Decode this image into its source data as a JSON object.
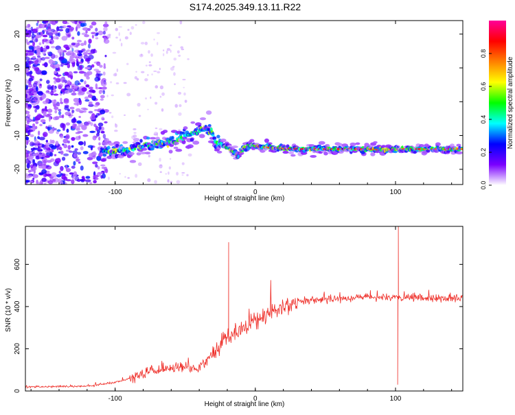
{
  "title": "S174.2025.349.13.11.R22",
  "chart_data": [
    {
      "type": "heatmap",
      "title": "S174.2025.349.13.11.R22",
      "xlabel": "Height of straight line (km)",
      "ylabel": "Frequency (Hz)",
      "xlim": [
        -164,
        148
      ],
      "ylim": [
        -24.5,
        24
      ],
      "xticks": [
        -100,
        0,
        100
      ],
      "yticks": [
        -20,
        -10,
        0,
        10,
        20
      ],
      "colorbar": {
        "label": "Normalized spectral amplitude",
        "range": [
          0,
          1
        ],
        "ticks": [
          "0.0",
          "0.2",
          "0.4",
          "0.6",
          "0.8"
        ],
        "tick_values": [
          0,
          0.2,
          0.4,
          0.6,
          0.8
        ],
        "colors": [
          "#ffffff",
          "#7a00ff",
          "#0000ff",
          "#00ffff",
          "#00ff00",
          "#ffff00",
          "#ff8000",
          "#ff0000",
          "#ff0099"
        ]
      },
      "ridge": {
        "x": [
          -110,
          -100,
          -90,
          -80,
          -70,
          -60,
          -50,
          -45,
          -40,
          -35,
          -30,
          -28,
          -25,
          -20,
          -15,
          -12,
          -10,
          -5,
          0,
          5,
          10,
          20,
          30,
          40,
          50,
          60,
          70,
          80,
          90,
          95,
          100,
          110,
          120,
          130,
          140,
          148
        ],
        "freq": [
          -15,
          -14.5,
          -14,
          -13,
          -12.5,
          -12,
          -10.5,
          -9.5,
          -8.5,
          -8,
          -9.5,
          -12,
          -12.5,
          -13.5,
          -15,
          -16,
          -14.5,
          -13,
          -13,
          -13.5,
          -13.5,
          -13.8,
          -14,
          -14,
          -14,
          -14,
          -14,
          -14,
          -14.2,
          -14.3,
          -14,
          -14,
          -14,
          -14,
          -14,
          -14
        ]
      }
    },
    {
      "type": "line",
      "xlabel": "Height of straight line (km)",
      "ylabel": "SNR (10 * v/v)",
      "xlim": [
        -164,
        148
      ],
      "ylim": [
        0,
        780
      ],
      "xticks": [
        -100,
        0,
        100
      ],
      "yticks": [
        0,
        200,
        400,
        600
      ],
      "line_color": "#ee2a24",
      "baseline_x": [
        -164,
        -120,
        -100,
        -80,
        -60,
        -40,
        -30,
        -20,
        -10,
        0,
        10,
        20,
        30,
        40,
        60,
        80,
        100,
        120,
        148
      ],
      "baseline_y": [
        20,
        22,
        40,
        80,
        110,
        110,
        180,
        260,
        290,
        330,
        370,
        400,
        420,
        430,
        440,
        445,
        440,
        440,
        440
      ],
      "spikes": [
        {
          "x": -19,
          "y": 705
        },
        {
          "x": 102,
          "y": 780
        },
        {
          "x": 101.5,
          "y": 30
        }
      ]
    }
  ]
}
